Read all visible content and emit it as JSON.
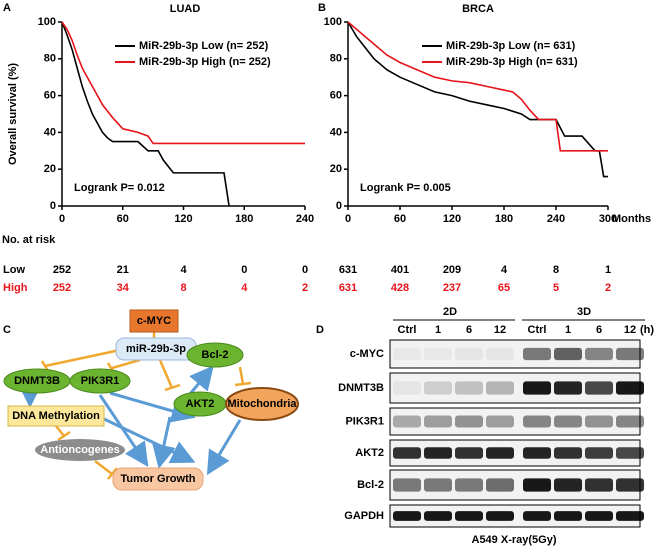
{
  "panel_labels": [
    "A",
    "B",
    "C",
    "D"
  ],
  "chart_data": [
    {
      "type": "line",
      "title": "LUAD",
      "ylabel": "Overall survival (%)",
      "annotation": "Logrank P= 0.012",
      "xlim": [
        0,
        240
      ],
      "xticks": [
        0,
        60,
        120,
        180,
        240
      ],
      "ylim": [
        0,
        100
      ],
      "yticks": [
        0,
        20,
        40,
        60,
        80,
        100
      ],
      "series": [
        {
          "name": "MiR-29b-3p Low  (n= 252)",
          "color": "#000000",
          "x": [
            0,
            5,
            10,
            15,
            20,
            25,
            30,
            35,
            40,
            45,
            50,
            60,
            75,
            85,
            95,
            100,
            110,
            160,
            165
          ],
          "values": [
            100,
            93,
            85,
            75,
            65,
            57,
            50,
            45,
            40,
            37,
            35,
            35,
            35,
            30,
            30,
            25,
            18,
            18,
            0
          ]
        },
        {
          "name": "MiR-29b-3p High (n= 252)",
          "color": "#e8141b",
          "x": [
            0,
            5,
            10,
            15,
            20,
            25,
            30,
            40,
            50,
            60,
            75,
            85,
            90,
            240
          ],
          "values": [
            100,
            96,
            90,
            82,
            75,
            70,
            65,
            55,
            48,
            42,
            40,
            38,
            34,
            34
          ]
        }
      ],
      "risk_table": {
        "title": "No. at risk",
        "rows": [
          {
            "name": "Low",
            "color": "#000000",
            "values": [
              252,
              21,
              4,
              0,
              0
            ]
          },
          {
            "name": "High",
            "color": "#e8141b",
            "values": [
              252,
              34,
              8,
              4,
              2
            ]
          }
        ]
      }
    },
    {
      "type": "line",
      "title": "BRCA",
      "xlabel": "Months",
      "annotation": "Logrank P= 0.005",
      "xlim": [
        0,
        300
      ],
      "xticks": [
        0,
        60,
        120,
        180,
        240,
        300
      ],
      "ylim": [
        0,
        100
      ],
      "yticks": [
        0,
        20,
        40,
        60,
        80,
        100
      ],
      "series": [
        {
          "name": "MiR-29b-3p Low  (n= 631)",
          "color": "#000000",
          "x": [
            0,
            10,
            20,
            30,
            45,
            60,
            80,
            100,
            120,
            140,
            160,
            180,
            200,
            210,
            240,
            250,
            270,
            285,
            290,
            295,
            300
          ],
          "values": [
            100,
            92,
            86,
            80,
            74,
            70,
            66,
            62,
            60,
            57,
            55,
            53,
            50,
            47,
            47,
            38,
            38,
            30,
            30,
            16,
            16
          ]
        },
        {
          "name": "MiR-29b-3p High (n= 631)",
          "color": "#e8141b",
          "x": [
            0,
            10,
            20,
            30,
            45,
            60,
            80,
            100,
            120,
            140,
            160,
            180,
            190,
            200,
            210,
            220,
            240,
            245,
            300
          ],
          "values": [
            100,
            96,
            92,
            88,
            82,
            78,
            74,
            70,
            68,
            67,
            65,
            63,
            62,
            58,
            52,
            47,
            47,
            30,
            30
          ]
        }
      ],
      "risk_table": {
        "rows": [
          {
            "color": "#000000",
            "values": [
              631,
              401,
              209,
              4,
              8,
              1
            ]
          },
          {
            "color": "#e8141b",
            "values": [
              631,
              428,
              237,
              65,
              5,
              2
            ]
          }
        ]
      }
    }
  ],
  "diagram": {
    "nodes": [
      {
        "label": "c-MYC"
      },
      {
        "label": "miR-29b-3p"
      },
      {
        "label": "Bcl-2"
      },
      {
        "label": "DNMT3B"
      },
      {
        "label": "PIK3R1"
      },
      {
        "label": "AKT2"
      },
      {
        "label": "Mitochondria"
      },
      {
        "label": "DNA Methylation"
      },
      {
        "label": "Antioncogenes"
      },
      {
        "label": "Tumor Growth"
      }
    ]
  },
  "blot": {
    "conditions": [
      "2D",
      "3D"
    ],
    "lanes": [
      "Ctrl",
      "1",
      "6",
      "12",
      "Ctrl",
      "1",
      "6",
      "12"
    ],
    "unit": "(h)",
    "rows": [
      "c-MYC",
      "DNMT3B",
      "PIK3R1",
      "AKT2",
      "Bcl-2",
      "GAPDH"
    ],
    "caption": "A549  X-ray(5Gy)"
  }
}
